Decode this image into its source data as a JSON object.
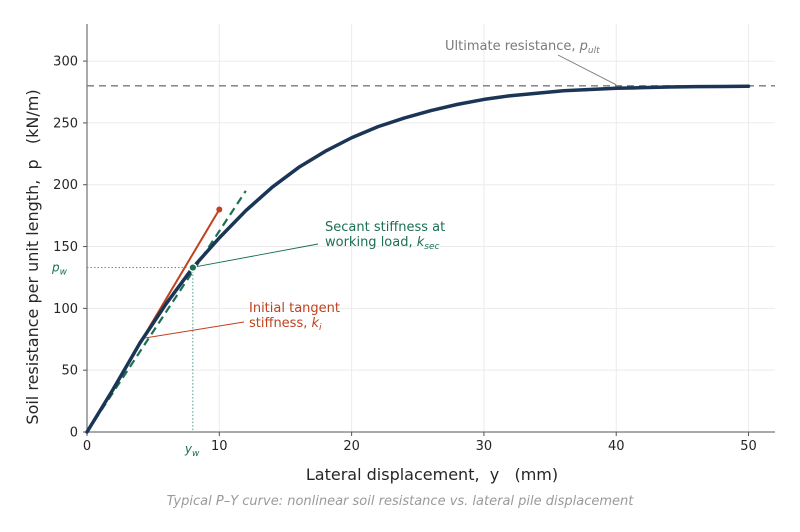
{
  "chart_data": {
    "type": "line",
    "xlabel": "Lateral displacement,  y   (mm)",
    "ylabel": "Soil resistance per unit length,  p   (kN/m)",
    "caption": "Typical P–Y curve: nonlinear soil resistance vs. lateral pile displacement",
    "xlim": [
      0,
      52
    ],
    "ylim": [
      0,
      330
    ],
    "x_ticks": [
      0,
      10,
      20,
      30,
      40,
      50
    ],
    "y_ticks": [
      0,
      50,
      100,
      150,
      200,
      250,
      300
    ],
    "grid": true,
    "series": [
      {
        "x": [
          0,
          2,
          4,
          6,
          8,
          10,
          12,
          14,
          16,
          18,
          20,
          22,
          24,
          26,
          28,
          30,
          32,
          34,
          36,
          38,
          40,
          42,
          44,
          46,
          48,
          50
        ],
        "y": [
          0,
          35,
          72,
          104,
          133,
          157,
          179,
          198,
          214,
          227,
          238,
          247,
          254,
          260,
          265,
          269,
          272,
          274,
          276,
          277,
          278,
          278.5,
          279,
          279.3,
          279.5,
          279.7
        ],
        "color": "#1b3556"
      }
    ],
    "ultimate": {
      "p_ult": 280,
      "label": "Ultimate resistance,",
      "symbol": "p",
      "subscript": "ult",
      "color": "#7a7a7a"
    },
    "tangent": {
      "x_end": 10,
      "y_end": 180,
      "label_line1": "Initial tangent",
      "label_line2": "stiffness,",
      "symbol": "k",
      "subscript": "i",
      "color": "#c0411d"
    },
    "secant": {
      "x_end": 12,
      "y_end": 195,
      "label_line1": "Secant stiffness at",
      "label_line2": "working load,",
      "symbol": "k",
      "subscript": "sec",
      "color": "#1a7050"
    },
    "working_point": {
      "y_w": 8,
      "p_w": 133,
      "y_label": "y",
      "y_sub": "w",
      "p_label": "p",
      "p_sub": "w",
      "color": "#1a7050"
    }
  }
}
